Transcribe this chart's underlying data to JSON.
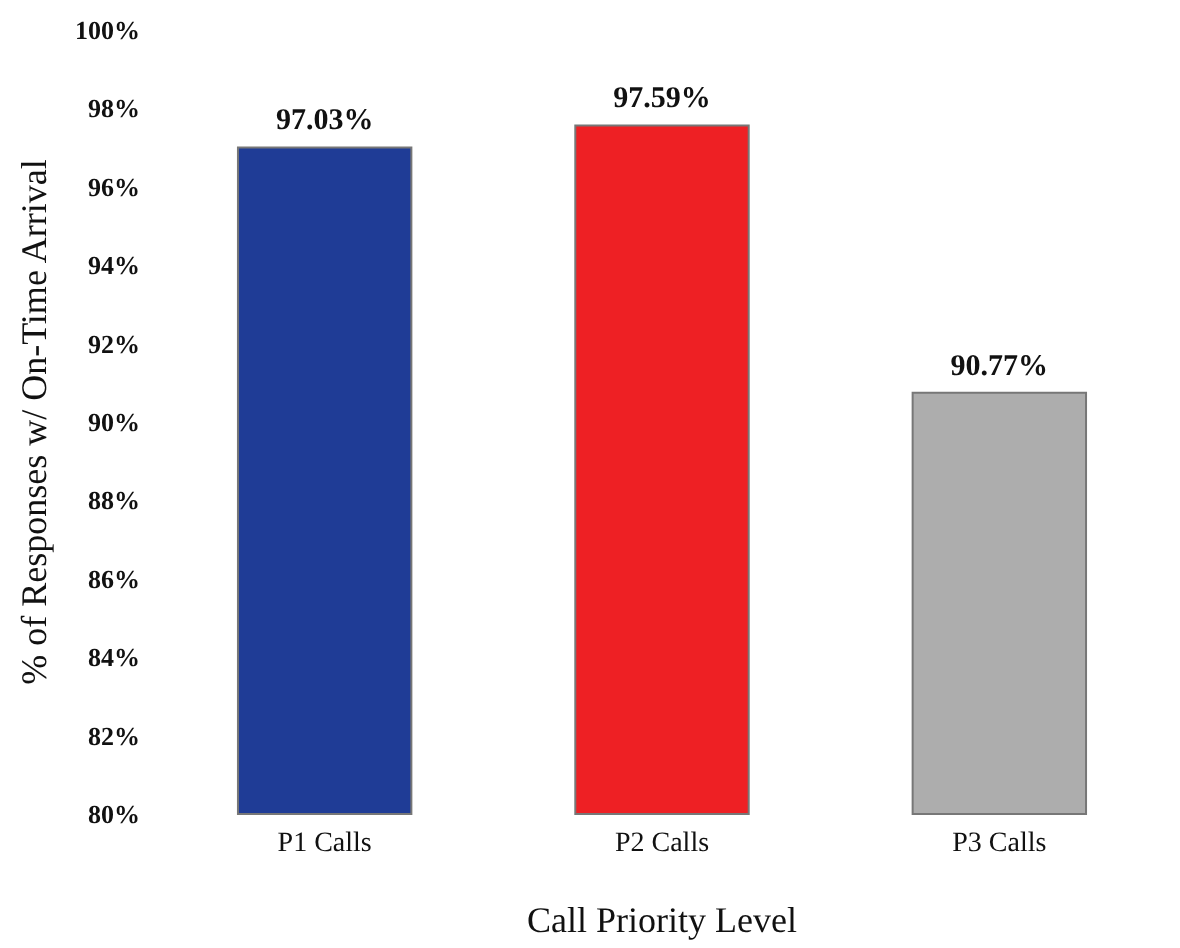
{
  "chart_data": {
    "type": "bar",
    "xlabel": "Call Priority Level",
    "ylabel": "% of Responses w/ On-Time Arrival",
    "categories": [
      "P1 Calls",
      "P2 Calls",
      "P3 Calls"
    ],
    "values": [
      97.03,
      97.59,
      90.77
    ],
    "colors": [
      "#1f3c96",
      "#ee2024",
      "#adadad"
    ],
    "value_labels": [
      "97.03%",
      "97.59%",
      "90.77%"
    ],
    "ylim": [
      80,
      100
    ],
    "yticks": [
      {
        "value": 80,
        "label": "80%"
      },
      {
        "value": 82,
        "label": "82%"
      },
      {
        "value": 84,
        "label": "84%"
      },
      {
        "value": 86,
        "label": "86%"
      },
      {
        "value": 88,
        "label": "88%"
      },
      {
        "value": 90,
        "label": "90%"
      },
      {
        "value": 92,
        "label": "92%"
      },
      {
        "value": 94,
        "label": "94%"
      },
      {
        "value": 96,
        "label": "96%"
      },
      {
        "value": 98,
        "label": "98%"
      },
      {
        "value": 100,
        "label": "100%"
      }
    ],
    "grid": false
  }
}
